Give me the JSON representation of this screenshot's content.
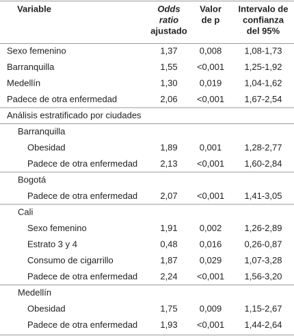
{
  "table": {
    "header": [
      [
        "Variable"
      ],
      [
        "Odds",
        "ratio",
        "ajustado"
      ],
      [
        "Valor",
        "de p"
      ],
      [
        "Intervalo de",
        "confianza",
        "del 95%"
      ]
    ],
    "rows": [
      [
        "Sexo femenino",
        "1,37",
        "0,008",
        "1,08-1,73"
      ],
      [
        "Barranquilla",
        "1,55",
        "<0,001",
        "1,25-1,92"
      ],
      [
        "Medellín",
        "1,30",
        "0,019",
        "1,04-1,62"
      ],
      [
        "Padece de otra enfermedad",
        "2,06",
        "<0,001",
        "1,67-2,54"
      ]
    ],
    "stratified": {
      "title": "Análisis estratificado por ciudades",
      "groups": [
        {
          "name": "Barranquilla",
          "rows": [
            [
              "Obesidad",
              "1,89",
              "0,001",
              "1,28-2,77"
            ],
            [
              "Padece de otra enfermedad",
              "2,13",
              "<0,001",
              "1,60-2,84"
            ]
          ]
        },
        {
          "name": "Bogotá",
          "rows": [
            [
              "Padece de otra enfermedad",
              "2,07",
              "<0,001",
              "1,41-3,05"
            ]
          ]
        },
        {
          "name": "Cali",
          "rows": [
            [
              "Sexo femenino",
              "1,91",
              "0,002",
              "1,26-2,89"
            ],
            [
              "Estrato 3 y 4",
              "0,48",
              "0,016",
              "0,26-0,87"
            ],
            [
              "Consumo de cigarrillo",
              "1,87",
              "0,029",
              "1,07-3,28"
            ],
            [
              "Padece de otra enfermedad",
              "2,24",
              "<0,001",
              "1,56-3,20"
            ]
          ]
        },
        {
          "name": "Medellín",
          "rows": [
            [
              "Obesidad",
              "1,75",
              "0,009",
              "1,15-2,67"
            ],
            [
              "Padece de otra enfermedad",
              "1,93",
              "<0,001",
              "1,44-2,64"
            ]
          ]
        }
      ]
    }
  }
}
